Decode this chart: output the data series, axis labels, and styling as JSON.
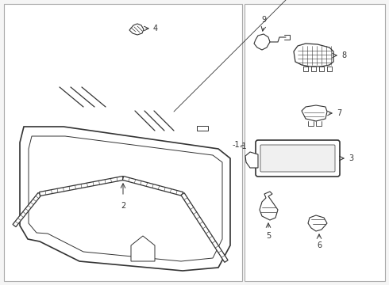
{
  "bg_color": "#f5f5f5",
  "line_color": "#333333",
  "label_color": "#000000",
  "fig_width": 4.9,
  "fig_height": 3.6,
  "dpi": 100,
  "panel_bg": "#ffffff"
}
